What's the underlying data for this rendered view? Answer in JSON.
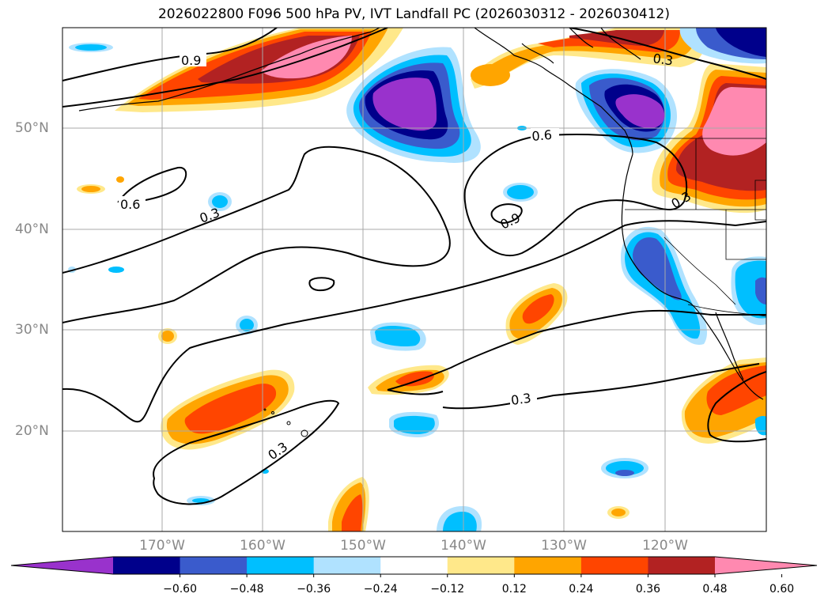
{
  "title": "2026022800 F096 500 hPa PV, IVT Landfall PC (2026030312 - 2026030412)",
  "map": {
    "lat_labels": [
      "50°N",
      "40°N",
      "30°N",
      "20°N"
    ],
    "lon_labels": [
      "170°W",
      "160°W",
      "150°W",
      "140°W",
      "130°W",
      "120°W"
    ],
    "gridlines": true
  },
  "contours": {
    "color": "#000000",
    "labels": [
      "0.9",
      "0.6",
      "0.3",
      "0.6",
      "0.9",
      "0.3",
      "0.3",
      "0.3",
      "0.3"
    ]
  },
  "colorbar": {
    "orientation": "horizontal",
    "extend": "both",
    "colors": [
      "#9932cc",
      "#00008b",
      "#3a5bcc",
      "#00bfff",
      "#b0e2ff",
      "#ffffff",
      "#ffe88a",
      "#ffa500",
      "#ff4500",
      "#b22222",
      "#ff89b0"
    ],
    "tick_labels": [
      "−0.60",
      "−0.48",
      "−0.36",
      "−0.24",
      "−0.12",
      "0.12",
      "0.24",
      "0.36",
      "0.48",
      "0.60"
    ]
  }
}
